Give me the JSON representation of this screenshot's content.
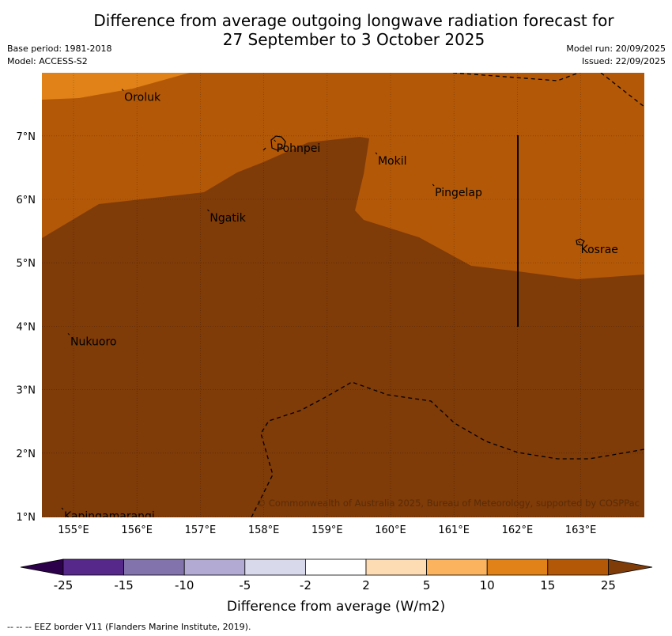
{
  "title": {
    "line1": "Difference from average outgoing longwave radiation forecast for",
    "line2": "27 September to 3 October 2025"
  },
  "meta": {
    "base_period": "Base period: 1981-2018",
    "model": "Model: ACCESS-S2",
    "model_run": "Model run: 20/09/2025",
    "issued": "Issued: 22/09/2025"
  },
  "map": {
    "lon_range": [
      154.5,
      164.0
    ],
    "lat_range": [
      1.0,
      8.0
    ],
    "lon_ticks": [
      {
        "value": 155,
        "label": "155°E"
      },
      {
        "value": 156,
        "label": "156°E"
      },
      {
        "value": 157,
        "label": "157°E"
      },
      {
        "value": 158,
        "label": "158°E"
      },
      {
        "value": 159,
        "label": "159°E"
      },
      {
        "value": 160,
        "label": "160°E"
      },
      {
        "value": 161,
        "label": "161°E"
      },
      {
        "value": 162,
        "label": "162°E"
      },
      {
        "value": 163,
        "label": "163°E"
      }
    ],
    "lat_ticks": [
      {
        "value": 1,
        "label": "1°N"
      },
      {
        "value": 2,
        "label": "2°N"
      },
      {
        "value": 3,
        "label": "3°N"
      },
      {
        "value": 4,
        "label": "4°N"
      },
      {
        "value": 5,
        "label": "5°N"
      },
      {
        "value": 6,
        "label": "6°N"
      },
      {
        "value": 7,
        "label": "7°N"
      }
    ],
    "places": [
      {
        "name": "Oroluk",
        "lon": 155.8,
        "lat": 7.7
      },
      {
        "name": "Pohnpei",
        "lon": 158.2,
        "lat": 6.9
      },
      {
        "name": "Mokil",
        "lon": 159.8,
        "lat": 6.7
      },
      {
        "name": "Pingelap",
        "lon": 160.7,
        "lat": 6.2
      },
      {
        "name": "Ngatik",
        "lon": 157.15,
        "lat": 5.8
      },
      {
        "name": "Kosrae",
        "lon": 163.0,
        "lat": 5.3
      },
      {
        "name": "Nukuoro",
        "lon": 154.95,
        "lat": 3.85
      },
      {
        "name": "Kapingamarangi",
        "lon": 154.85,
        "lat": 1.1
      }
    ],
    "watermark": "© Commonwealth of Australia 2025, Bureau of Meteorology, supported by COSPPac"
  },
  "colorbar": {
    "boundaries": [
      "-25",
      "-15",
      "-10",
      "-5",
      "-2",
      "2",
      "5",
      "10",
      "15",
      "25"
    ],
    "colors": [
      "#55288a",
      "#8373ad",
      "#b2aad3",
      "#d9d9ec",
      "#ffffff",
      "#fddcb3",
      "#fbb35e",
      "#e08218",
      "#b35807"
    ],
    "under_color": "#2d004b",
    "over_color": "#7f3b08",
    "label": "Difference from average (W/m2)"
  },
  "palette": {
    "class_25_plus": "#7f3b08",
    "class_15_25": "#b35807",
    "class_10_15": "#e08218"
  },
  "credit": "--  --  -- EEZ border V11 (Flanders Marine Institute, 2019)."
}
